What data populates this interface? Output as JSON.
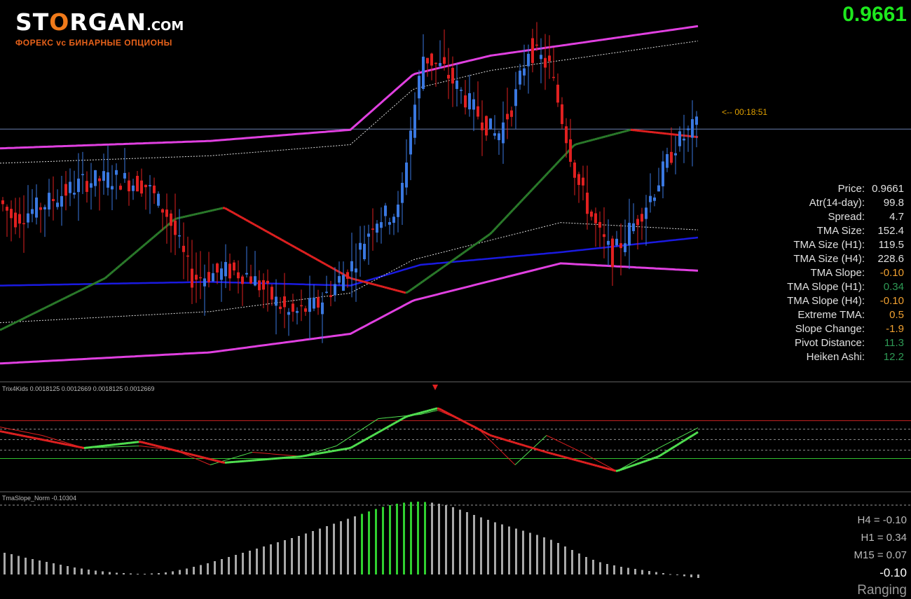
{
  "brand": {
    "name_pre": "ST",
    "name_o": "O",
    "name_post": "RGAN",
    "domain": ".COM",
    "tagline": "ФОРЕКС vc БИНАРНЫЕ ОПЦИОНЫ"
  },
  "header": {
    "current_price": "0.9661",
    "timer": "<-- 00:18:51"
  },
  "stats": [
    {
      "label": "Price:",
      "value": "0.9661",
      "color": "#e0e0e0"
    },
    {
      "label": "Atr(14-day):",
      "value": "99.8",
      "color": "#e0e0e0"
    },
    {
      "label": "Spread:",
      "value": "4.7",
      "color": "#e0e0e0"
    },
    {
      "label": "TMA Size:",
      "value": "152.4",
      "color": "#e0e0e0"
    },
    {
      "label": "TMA Size (H1):",
      "value": "119.5",
      "color": "#e0e0e0"
    },
    {
      "label": "TMA Size (H4):",
      "value": "228.6",
      "color": "#e0e0e0"
    },
    {
      "label": "TMA Slope:",
      "value": "-0.10",
      "color": "#f0a030"
    },
    {
      "label": "TMA Slope (H1):",
      "value": "0.34",
      "color": "#2e9a55"
    },
    {
      "label": "TMA Slope (H4):",
      "value": "-0.10",
      "color": "#f0a030"
    },
    {
      "label": "Extreme TMA:",
      "value": "0.5",
      "color": "#f0a030"
    },
    {
      "label": "Slope Change:",
      "value": "-1.9",
      "color": "#f0a030"
    },
    {
      "label": "Pivot Distance:",
      "value": "11.3",
      "color": "#2e9a55"
    },
    {
      "label": "Heiken Ashi:",
      "value": "12.2",
      "color": "#2e9a55"
    }
  ],
  "trix_title": "Trix4Kids 0.0018125 0.0012669 0.0018125 0.0012669",
  "tma_title": "TmaSlope_Norm -0.10304",
  "slopes": {
    "h4": "H4 = -0.10",
    "h1": "H1 = 0.34",
    "m15": "M15 = 0.07",
    "current": "-0.10",
    "state": "Ranging"
  },
  "colors": {
    "bull": "#3a78e0",
    "bear": "#e02020",
    "band": "#e040e0",
    "tma_mid": "#1a1ae0",
    "tma_up": "#2a7a2a",
    "tma_down": "#e02020",
    "trix_green": "#50e050",
    "trix_red": "#e02020",
    "hist_gray": "#a8a8a8",
    "hist_green": "#30d030"
  },
  "chart_data": [
    {
      "type": "candlestick",
      "title": "",
      "note": "price panel with TMA bands; values in price units",
      "current_price": 0.9661,
      "price_waypoints": [
        [
          0,
          0.957
        ],
        [
          25,
          0.954
        ],
        [
          60,
          0.9555
        ],
        [
          125,
          0.959
        ],
        [
          170,
          0.9595
        ],
        [
          215,
          0.9585
        ],
        [
          245,
          0.9545
        ],
        [
          280,
          0.946
        ],
        [
          330,
          0.947
        ],
        [
          360,
          0.9465
        ],
        [
          420,
          0.941
        ],
        [
          460,
          0.9425
        ],
        [
          510,
          0.948
        ],
        [
          540,
          0.954
        ],
        [
          575,
          0.955
        ],
        [
          590,
          0.965
        ],
        [
          610,
          0.976
        ],
        [
          640,
          0.974
        ],
        [
          680,
          0.969
        ],
        [
          715,
          0.965
        ],
        [
          740,
          0.97
        ],
        [
          760,
          0.977
        ],
        [
          790,
          0.9745
        ],
        [
          830,
          0.959
        ],
        [
          860,
          0.952
        ],
        [
          880,
          0.949
        ],
        [
          915,
          0.954
        ],
        [
          940,
          0.958
        ],
        [
          970,
          0.964
        ],
        [
          998,
          0.9665
        ]
      ],
      "tma_mid": [
        [
          0,
          0.945
        ],
        [
          300,
          0.9455
        ],
        [
          500,
          0.945
        ],
        [
          600,
          0.9478
        ],
        [
          800,
          0.9495
        ],
        [
          998,
          0.9515
        ]
      ],
      "tma_band_upper": [
        [
          0,
          0.9635
        ],
        [
          300,
          0.9645
        ],
        [
          500,
          0.966
        ],
        [
          590,
          0.9735
        ],
        [
          700,
          0.976
        ],
        [
          998,
          0.98
        ]
      ],
      "tma_band_lower": [
        [
          0,
          0.9345
        ],
        [
          300,
          0.936
        ],
        [
          500,
          0.9385
        ],
        [
          590,
          0.943
        ],
        [
          800,
          0.948
        ],
        [
          998,
          0.947
        ]
      ],
      "slope_line": [
        [
          0,
          0.939
        ],
        [
          150,
          0.946
        ],
        [
          250,
          0.954
        ],
        [
          320,
          0.9555
        ],
        [
          500,
          0.946
        ],
        [
          580,
          0.944
        ],
        [
          700,
          0.952
        ],
        [
          820,
          0.964
        ],
        [
          900,
          0.966
        ],
        [
          998,
          0.965
        ]
      ]
    },
    {
      "type": "line",
      "title": "Trix4Kids",
      "values_printed": [
        0.0018125,
        0.0012669,
        0.0018125,
        0.0012669
      ],
      "fast": [
        [
          0,
          0.3
        ],
        [
          60,
          0.1
        ],
        [
          120,
          -0.2
        ],
        [
          200,
          -0.15
        ],
        [
          250,
          -0.25
        ],
        [
          300,
          -0.6
        ],
        [
          360,
          -0.3
        ],
        [
          430,
          -0.4
        ],
        [
          480,
          -0.15
        ],
        [
          540,
          0.5
        ],
        [
          600,
          0.6
        ],
        [
          625,
          0.7
        ],
        [
          680,
          0.3
        ],
        [
          735,
          -0.6
        ],
        [
          780,
          0.1
        ],
        [
          830,
          -0.3
        ],
        [
          880,
          -0.75
        ],
        [
          940,
          -0.2
        ],
        [
          998,
          0.3
        ]
      ],
      "slow": [
        [
          0,
          0.2
        ],
        [
          60,
          0.0
        ],
        [
          120,
          -0.2
        ],
        [
          200,
          -0.05
        ],
        [
          260,
          -0.3
        ],
        [
          320,
          -0.55
        ],
        [
          430,
          -0.4
        ],
        [
          500,
          -0.2
        ],
        [
          580,
          0.55
        ],
        [
          625,
          0.75
        ],
        [
          700,
          0.1
        ],
        [
          780,
          -0.3
        ],
        [
          880,
          -0.75
        ],
        [
          940,
          -0.4
        ],
        [
          998,
          0.2
        ]
      ],
      "levels": [
        0.45,
        0.25,
        0.0,
        -0.25,
        -0.45
      ]
    },
    {
      "type": "bar",
      "title": "TmaSlope_Norm",
      "value_printed": -0.10304,
      "values": [
        0.62,
        0.58,
        0.53,
        0.48,
        0.44,
        0.4,
        0.36,
        0.32,
        0.28,
        0.24,
        0.2,
        0.17,
        0.14,
        0.11,
        0.09,
        0.07,
        0.05,
        0.04,
        0.03,
        0.02,
        0.02,
        0.03,
        0.04,
        0.06,
        0.09,
        0.13,
        0.17,
        0.22,
        0.27,
        0.32,
        0.38,
        0.44,
        0.5,
        0.56,
        0.62,
        0.68,
        0.74,
        0.8,
        0.86,
        0.92,
        0.98,
        1.04,
        1.1,
        1.17,
        1.24,
        1.31,
        1.38,
        1.45,
        1.52,
        1.59,
        1.66,
        1.73,
        1.8,
        1.87,
        1.93,
        1.98,
        2.02,
        2.05,
        2.07,
        2.08,
        2.07,
        2.05,
        2.02,
        1.98,
        1.92,
        1.85,
        1.78,
        1.7,
        1.63,
        1.56,
        1.49,
        1.43,
        1.37,
        1.31,
        1.25,
        1.19,
        1.13,
        1.06,
        0.99,
        0.9,
        0.8,
        0.7,
        0.6,
        0.5,
        0.42,
        0.35,
        0.3,
        0.26,
        0.22,
        0.19,
        0.16,
        0.13,
        0.1,
        0.07,
        0.04,
        0.01,
        -0.02,
        -0.05,
        -0.08,
        -0.1
      ],
      "green_range": [
        51,
        60
      ]
    }
  ]
}
